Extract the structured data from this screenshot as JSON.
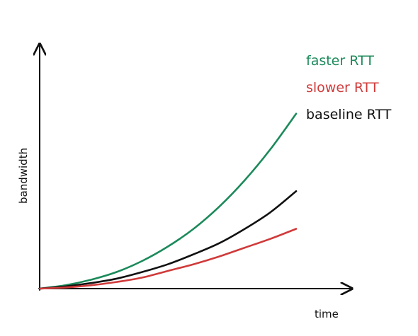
{
  "chart_data": {
    "type": "line",
    "title": "",
    "xlabel": "time",
    "ylabel": "bandwidth",
    "xlim": [
      0,
      10
    ],
    "ylim": [
      0,
      10
    ],
    "grid": false,
    "legend_position": "top-right",
    "x": [
      0,
      1,
      2,
      3,
      4,
      5,
      6,
      7,
      8,
      9,
      10
    ],
    "series": [
      {
        "name": "faster RTT",
        "color": "#1b8a5a",
        "values": [
          0,
          0.15,
          0.4,
          0.75,
          1.25,
          1.9,
          2.7,
          3.7,
          4.9,
          6.3,
          7.9
        ]
      },
      {
        "name": "slower RTT",
        "color": "#d03a3a",
        "values": [
          0,
          0.05,
          0.15,
          0.3,
          0.5,
          0.8,
          1.1,
          1.45,
          1.85,
          2.25,
          2.7
        ]
      },
      {
        "name": "baseline RTT",
        "color": "#111111",
        "values": [
          0,
          0.1,
          0.25,
          0.45,
          0.75,
          1.1,
          1.55,
          2.05,
          2.7,
          3.45,
          4.4
        ]
      }
    ]
  }
}
